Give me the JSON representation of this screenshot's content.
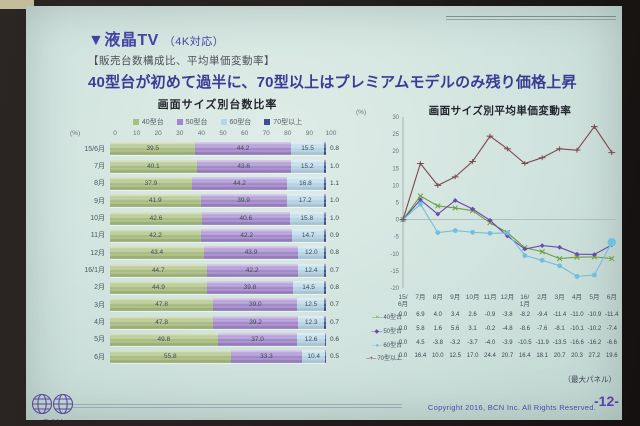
{
  "slide": {
    "title": "▼液晶TV",
    "title_note": "（4K対応）",
    "subtitle": "【販売台数構成比、平均単価変動率】",
    "headline": "40型台が初めて過半に、70型以上はプレミアムモデルのみ残り価格上昇"
  },
  "chart_data": [
    {
      "type": "bar",
      "variant": "horizontal-stacked-100pct",
      "title": "画面サイズ別台数比率",
      "unit": "(%)",
      "xticks": [
        0,
        10,
        20,
        30,
        40,
        50,
        60,
        70,
        80,
        90,
        100
      ],
      "xlim": [
        0,
        100
      ],
      "categories": [
        "15/6月",
        "7月",
        "8月",
        "9月",
        "10月",
        "11月",
        "12月",
        "16/1月",
        "2月",
        "3月",
        "4月",
        "5月",
        "6月"
      ],
      "series": [
        {
          "name": "40型台",
          "color": "#a9bf7e",
          "values": [
            39.5,
            40.1,
            37.9,
            41.9,
            42.6,
            42.2,
            43.4,
            44.7,
            44.9,
            47.8,
            47.8,
            49.8,
            55.8
          ]
        },
        {
          "name": "50型台",
          "color": "#a287cd",
          "values": [
            44.2,
            43.6,
            44.2,
            39.9,
            40.6,
            42.2,
            43.9,
            42.2,
            39.8,
            39.0,
            39.2,
            37.0,
            33.3
          ]
        },
        {
          "name": "60型台",
          "color": "#b6d7e8",
          "values": [
            15.5,
            15.2,
            16.8,
            17.2,
            15.8,
            14.7,
            12.0,
            12.4,
            14.5,
            12.5,
            12.3,
            12.6,
            10.4
          ]
        },
        {
          "name": "70型以上",
          "color": "#3f4f93",
          "values": [
            0.8,
            1.0,
            1.1,
            1.0,
            1.0,
            0.9,
            0.8,
            0.7,
            0.8,
            0.7,
            0.7,
            0.6,
            0.5
          ]
        }
      ],
      "legend_position": "top"
    },
    {
      "type": "line",
      "title": "画面サイズ別平均単価変動率",
      "unit": "(%)",
      "ylim": [
        -20,
        30
      ],
      "ytick_step": 5,
      "zero_line": true,
      "categories": [
        "15/6月",
        "7月",
        "8月",
        "9月",
        "10月",
        "11月",
        "12月",
        "16/1月",
        "2月",
        "3月",
        "4月",
        "5月",
        "6月"
      ],
      "series": [
        {
          "name": "40型台",
          "color": "#6f9d3f",
          "marker": "cross",
          "values": [
            0.0,
            6.9,
            4.0,
            3.4,
            2.6,
            -0.9,
            -3.8,
            -8.2,
            -9.4,
            -11.4,
            -11.0,
            -10.9,
            -11.4
          ]
        },
        {
          "name": "50型台",
          "color": "#6a4aad",
          "marker": "diamond",
          "values": [
            0.0,
            5.8,
            1.6,
            5.6,
            3.1,
            -0.2,
            -4.8,
            -8.6,
            -7.6,
            -8.1,
            -10.1,
            -10.2,
            -7.4
          ]
        },
        {
          "name": "60型台",
          "color": "#72bedd",
          "marker": "circle",
          "values": [
            0.0,
            4.5,
            -3.8,
            -3.2,
            -3.7,
            -4.0,
            -3.9,
            -10.5,
            -11.9,
            -13.5,
            -16.6,
            -16.2,
            -6.6
          ]
        },
        {
          "name": "70型以上",
          "color": "#7d474e",
          "marker": "plus",
          "values": [
            0.0,
            16.4,
            10.0,
            12.5,
            17.0,
            24.4,
            20.7,
            16.4,
            18.1,
            20.7,
            20.3,
            27.2,
            19.6
          ]
        }
      ],
      "value_table": true,
      "note": "（最大パネル）",
      "legend_position": "table-left"
    }
  ],
  "footer": {
    "logo_text": "BCN",
    "copyright": "Copyright 2016, BCN Inc. All Rights Reserved.",
    "page": "-12-"
  }
}
